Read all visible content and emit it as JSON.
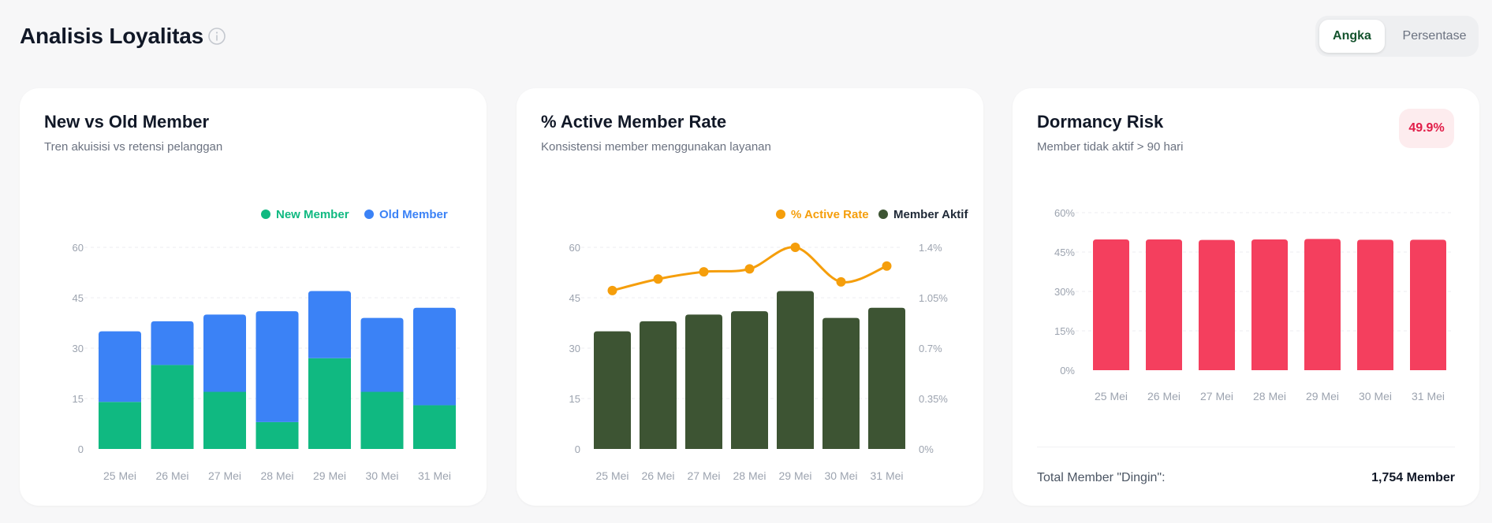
{
  "header": {
    "title": "Analisis Loyalitas",
    "view_toggle": {
      "options": [
        "Angka",
        "Persentase"
      ],
      "selected": "Angka"
    }
  },
  "colors": {
    "new_member": "#10b981",
    "old_member": "#3b82f6",
    "active_rate": "#f59e0b",
    "member_aktif": "#3d5433",
    "dormancy": "#f43f5e"
  },
  "cards": {
    "new_vs_old": {
      "title": "New vs Old Member",
      "subtitle": "Tren akuisisi vs retensi pelanggan"
    },
    "active_rate": {
      "title": "% Active Member Rate",
      "subtitle": "Konsistensi member menggunakan layanan"
    },
    "dormancy": {
      "title": "Dormancy Risk",
      "subtitle": "Member tidak aktif > 90 hari",
      "badge": "49.9%",
      "footer_label": "Total Member \"Dingin\":",
      "footer_value": "1,754 Member"
    }
  },
  "chart_data": [
    {
      "type": "bar",
      "stacked": true,
      "categories": [
        "25 Mei",
        "26 Mei",
        "27 Mei",
        "28 Mei",
        "29 Mei",
        "30 Mei",
        "31 Mei"
      ],
      "series": [
        {
          "name": "New Member",
          "values": [
            14,
            25,
            17,
            8,
            27,
            17,
            13
          ]
        },
        {
          "name": "Old Member",
          "values": [
            21,
            13,
            23,
            33,
            20,
            22,
            29
          ]
        }
      ],
      "yticks": [
        "0",
        "15",
        "30",
        "45",
        "60"
      ],
      "ylim": [
        0,
        60
      ],
      "legend": "top-right",
      "grid": true
    },
    {
      "type": "bar",
      "categories": [
        "25 Mei",
        "26 Mei",
        "27 Mei",
        "28 Mei",
        "29 Mei",
        "30 Mei",
        "31 Mei"
      ],
      "series": [
        {
          "name": "Member Aktif",
          "values": [
            35,
            38,
            40,
            41,
            47,
            39,
            42
          ],
          "axis": "left",
          "type": "bar"
        },
        {
          "name": "% Active Rate",
          "values": [
            1.1,
            1.18,
            1.23,
            1.25,
            1.4,
            1.16,
            1.27
          ],
          "axis": "right",
          "type": "line"
        }
      ],
      "legend_order": [
        "% Active Rate",
        "Member Aktif"
      ],
      "yticks_left": [
        "0",
        "15",
        "30",
        "45",
        "60"
      ],
      "ylim_left": [
        0,
        60
      ],
      "yticks_right": [
        "0%",
        "0.35%",
        "0.7%",
        "1.05%",
        "1.4%"
      ],
      "ylim_right": [
        0,
        1.4
      ],
      "legend": "top-right",
      "grid": true
    },
    {
      "type": "bar",
      "categories": [
        "25 Mei",
        "26 Mei",
        "27 Mei",
        "28 Mei",
        "29 Mei",
        "30 Mei",
        "31 Mei"
      ],
      "series": [
        {
          "name": "Dormancy",
          "values": [
            49.8,
            49.8,
            49.6,
            49.8,
            50.0,
            49.7,
            49.7
          ]
        }
      ],
      "yticks": [
        "0%",
        "15%",
        "30%",
        "45%",
        "60%"
      ],
      "ylim": [
        0,
        60
      ],
      "grid": true
    }
  ]
}
